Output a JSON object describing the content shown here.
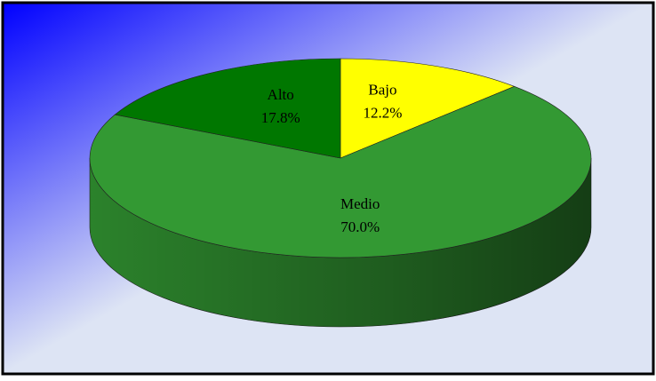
{
  "chart_data": {
    "type": "pie3d",
    "categories": [
      "Bajo",
      "Medio",
      "Alto"
    ],
    "values": [
      12.2,
      70.0,
      17.8
    ],
    "value_labels": [
      "12.2%",
      "70.0%",
      "17.8%"
    ],
    "colors": [
      "#ffff00",
      "#339933",
      "#007700"
    ]
  }
}
